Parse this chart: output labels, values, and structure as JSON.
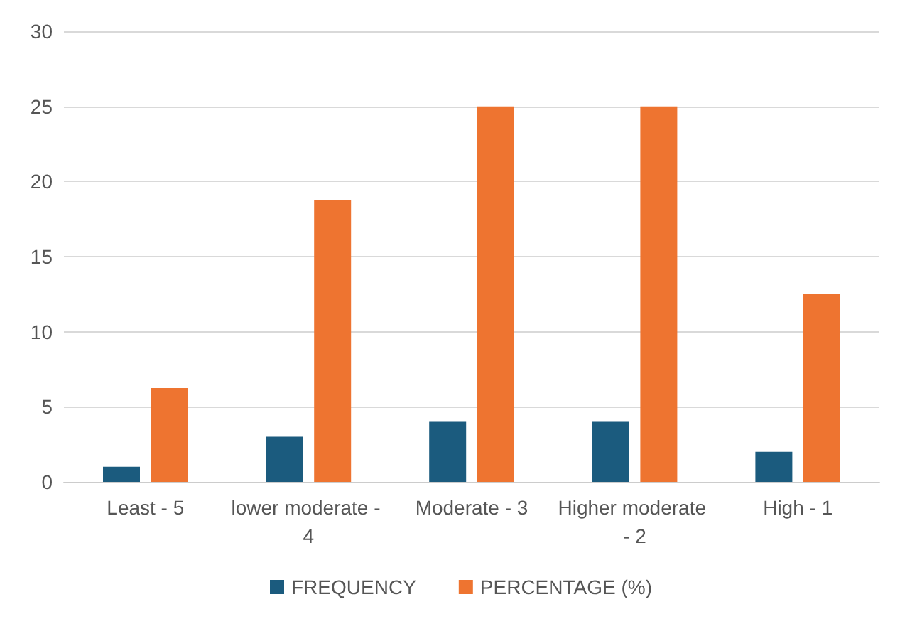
{
  "chart_data": {
    "type": "bar",
    "categories": [
      "Least - 5",
      "lower moderate - 4",
      "Moderate - 3",
      "Higher moderate - 2",
      "High - 1"
    ],
    "series": [
      {
        "name": "FREQUENCY",
        "color": "#1b5b7e",
        "values": [
          1,
          3,
          4,
          4,
          2
        ]
      },
      {
        "name": "PERCENTAGE (%)",
        "color": "#ee7430",
        "values": [
          6.25,
          18.75,
          25,
          25,
          12.5
        ]
      }
    ],
    "ylim": [
      0,
      30
    ],
    "yticks": [
      0,
      5,
      10,
      15,
      20,
      25,
      30
    ],
    "grid": "y",
    "legend": "bottom"
  }
}
